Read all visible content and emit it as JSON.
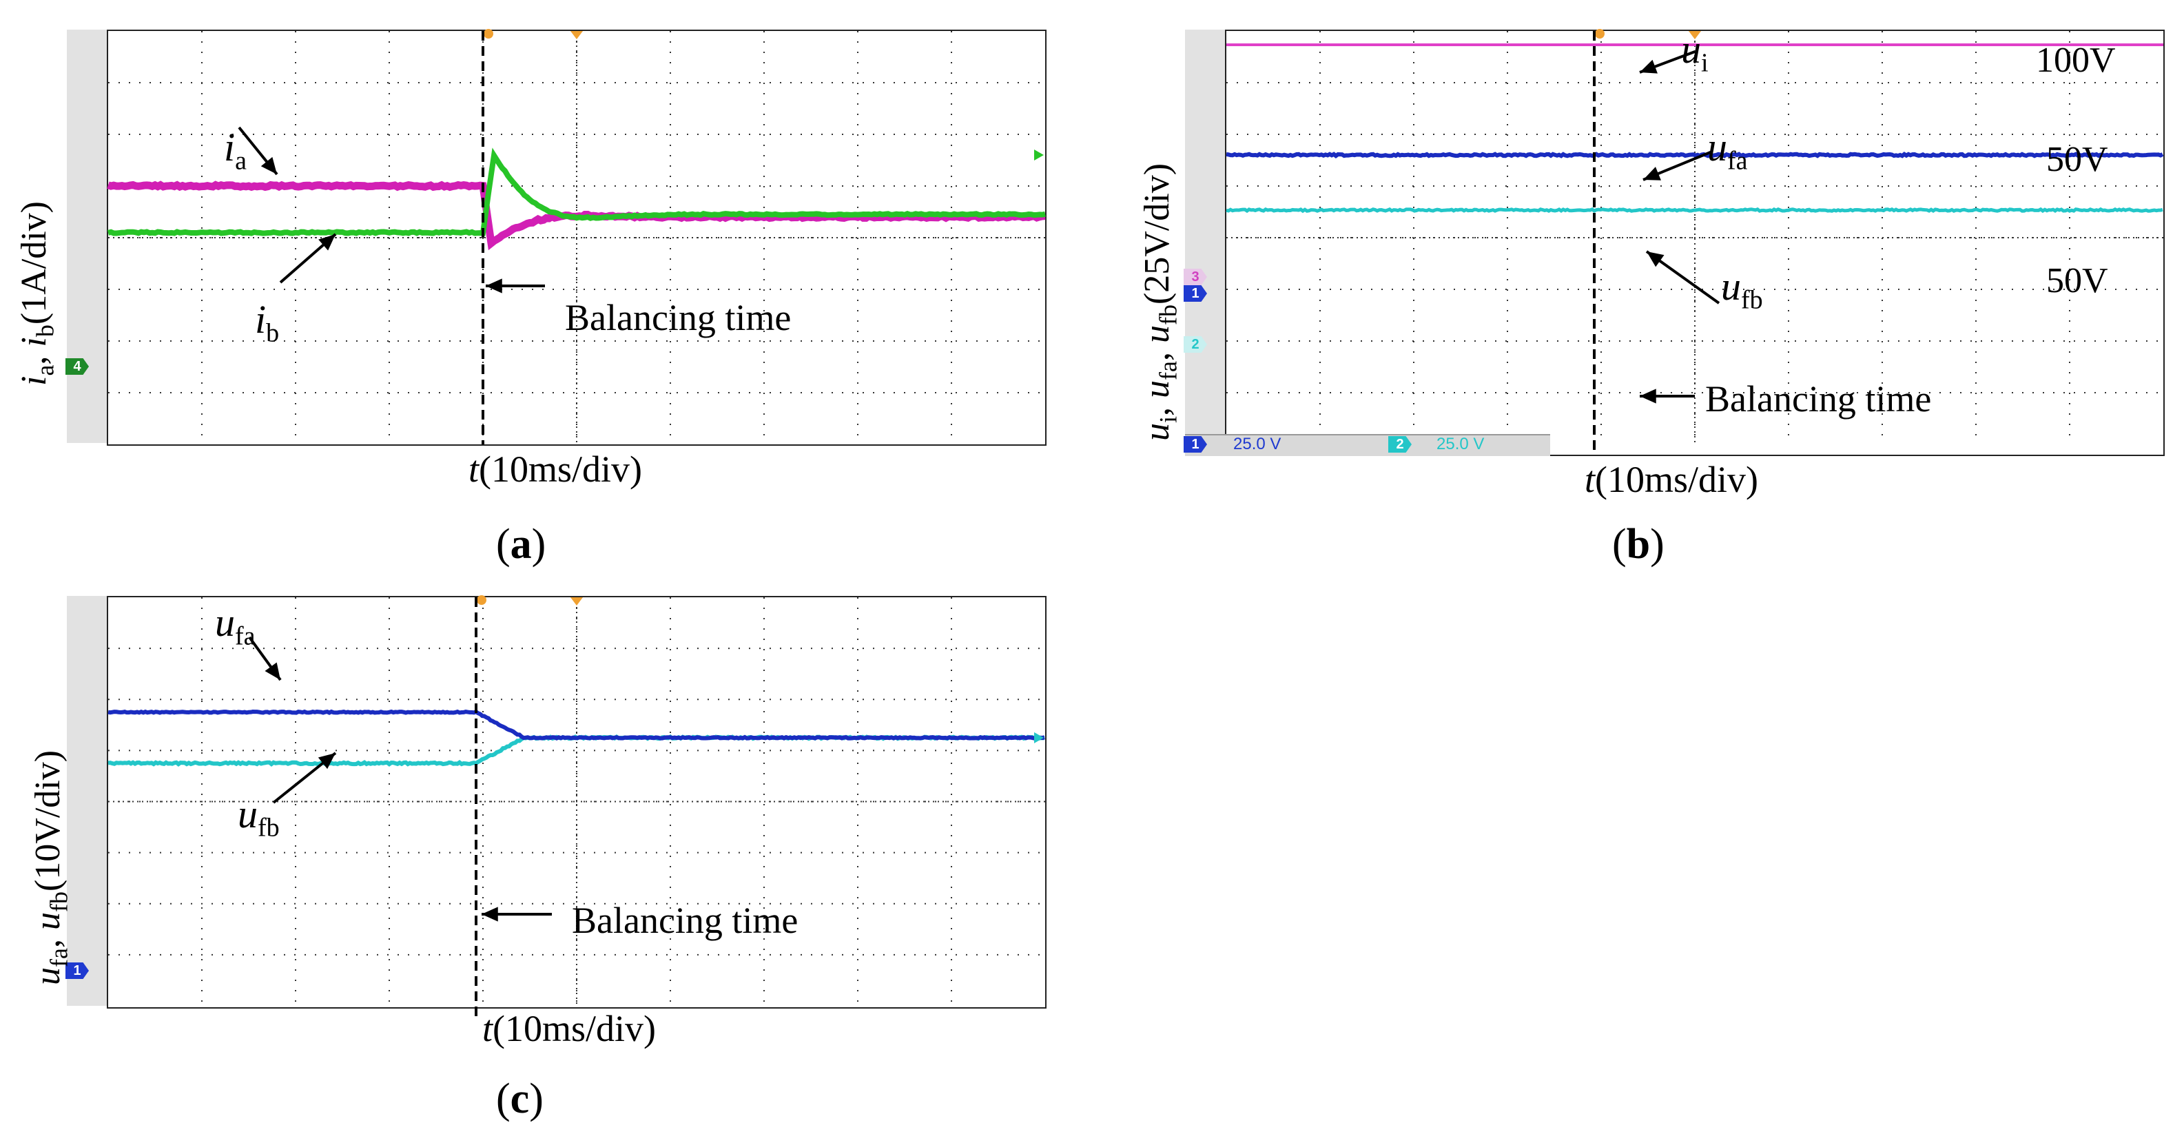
{
  "colors": {
    "ia": "#d21fb4",
    "ib": "#27c427",
    "ui": "#e040c8",
    "ufa": "#1a2cc0",
    "ufb": "#23c6c8",
    "grid": "#333333",
    "marker_orange": "#f0a030",
    "ch4": "#1f8a2a",
    "ch1": "#1f3ad0",
    "ch2": "#23c6c8",
    "ch3": "#d040c0"
  },
  "panel_a": {
    "caption": "a",
    "ylabel_main": "i",
    "ylabel_sub_a": "a",
    "ylabel_sub_b": "b",
    "ylabel_unit": "(1A/div)",
    "xlabel_var": "t",
    "xlabel_unit": "(10ms/div)",
    "annotation": "Balancing time",
    "trace_label_ia_main": "i",
    "trace_label_ia_sub": "a",
    "trace_label_ib_main": "i",
    "trace_label_ib_sub": "b",
    "channel_marker": "4"
  },
  "panel_b": {
    "caption": "b",
    "ylabel_unit": "(25V/div)",
    "xlabel_var": "t",
    "xlabel_unit": "(10ms/div)",
    "annotation": "Balancing time",
    "level_ui": "100V",
    "level_ufa": "50V",
    "level_ufb": "50V",
    "trace_label_ui_sub": "i",
    "trace_label_ufa_sub": "fa",
    "trace_label_ufb_sub": "fb",
    "channel_marker_1": "1",
    "channel_marker_2": "2",
    "channel_marker_3": "3",
    "status_ch1": "25.0 V",
    "status_ch2": "25.0 V"
  },
  "panel_c": {
    "caption": "c",
    "ylabel_unit": "(10V/div)",
    "xlabel_var": "t",
    "xlabel_unit": "(10ms/div)",
    "annotation": "Balancing time",
    "trace_label_ufa_sub": "fa",
    "trace_label_ufb_sub": "fb",
    "channel_marker": "1"
  },
  "chart_data": [
    {
      "type": "line",
      "title": "(a)",
      "xlabel": "t(10ms/div)",
      "ylabel": "ia, ib(1A/div)",
      "x_divisions": 10,
      "y_divisions": 8,
      "balancing_time_div": 4.0,
      "series": [
        {
          "name": "ia",
          "before_div": 5.0,
          "dip_div": 3.9,
          "after_div": 4.4
        },
        {
          "name": "ib",
          "before_div": 4.1,
          "peak_div": 5.6,
          "after_div": 4.45
        }
      ]
    },
    {
      "type": "line",
      "title": "(b)",
      "xlabel": "t(10ms/div)",
      "ylabel": "ui, ufa, ufb(25V/div)",
      "x_divisions": 10,
      "y_divisions": 8,
      "balancing_time_div": 4.0,
      "series": [
        {
          "name": "ui",
          "value_V": 100
        },
        {
          "name": "ufa",
          "value_V": 50
        },
        {
          "name": "ufb",
          "value_V": 50
        }
      ]
    },
    {
      "type": "line",
      "title": "(c)",
      "xlabel": "t(10ms/div)",
      "ylabel": "ufa, ufb(10V/div)",
      "x_divisions": 10,
      "y_divisions": 8,
      "balancing_time_div": 4.0,
      "series": [
        {
          "name": "ufa",
          "before_div": 5.75,
          "after_div": 5.25
        },
        {
          "name": "ufb",
          "before_div": 4.75,
          "after_div": 5.25
        }
      ]
    }
  ]
}
